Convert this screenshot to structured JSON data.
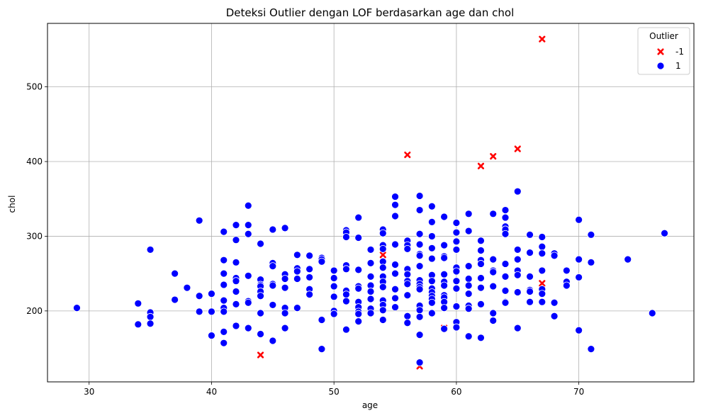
{
  "chart_data": {
    "type": "scatter",
    "title": "Deteksi Outlier dengan LOF berdasarkan age dan chol",
    "xlabel": "age",
    "ylabel": "chol",
    "xlim": [
      26.6,
      79.4
    ],
    "ylim": [
      105,
      585
    ],
    "xticks": [
      30,
      40,
      50,
      60,
      70
    ],
    "yticks": [
      200,
      300,
      400,
      500
    ],
    "grid": true,
    "legend": {
      "title": "Outlier",
      "position": "top-right"
    },
    "series": [
      {
        "name": "-1",
        "color": "#ff0000",
        "marker": "x",
        "points": [
          [
            67,
            564
          ],
          [
            56,
            409
          ],
          [
            65,
            417
          ],
          [
            63,
            407
          ],
          [
            62,
            394
          ],
          [
            44,
            141
          ],
          [
            67,
            237
          ],
          [
            59,
            177
          ],
          [
            57,
            126
          ],
          [
            54,
            275
          ]
        ]
      },
      {
        "name": "1",
        "color": "#0000ff",
        "marker": "circle",
        "points": [
          [
            29,
            204
          ],
          [
            34,
            210
          ],
          [
            34,
            182
          ],
          [
            35,
            282
          ],
          [
            35,
            198
          ],
          [
            35,
            192
          ],
          [
            35,
            183
          ],
          [
            37,
            250
          ],
          [
            37,
            215
          ],
          [
            38,
            231
          ],
          [
            39,
            321
          ],
          [
            39,
            220
          ],
          [
            39,
            199
          ],
          [
            40,
            223
          ],
          [
            40,
            199
          ],
          [
            40,
            167
          ],
          [
            41,
            306
          ],
          [
            41,
            268
          ],
          [
            41,
            250
          ],
          [
            41,
            235
          ],
          [
            41,
            214
          ],
          [
            41,
            204
          ],
          [
            41,
            199
          ],
          [
            41,
            172
          ],
          [
            41,
            157
          ],
          [
            42,
            315
          ],
          [
            42,
            295
          ],
          [
            42,
            265
          ],
          [
            42,
            244
          ],
          [
            42,
            240
          ],
          [
            42,
            226
          ],
          [
            42,
            209
          ],
          [
            42,
            180
          ],
          [
            43,
            341
          ],
          [
            43,
            315
          ],
          [
            43,
            303
          ],
          [
            43,
            247
          ],
          [
            43,
            213
          ],
          [
            43,
            211
          ],
          [
            43,
            177
          ],
          [
            44,
            290
          ],
          [
            44,
            242
          ],
          [
            44,
            235
          ],
          [
            44,
            233
          ],
          [
            44,
            226
          ],
          [
            44,
            220
          ],
          [
            44,
            197
          ],
          [
            44,
            169
          ],
          [
            45,
            309
          ],
          [
            45,
            264
          ],
          [
            45,
            260
          ],
          [
            45,
            236
          ],
          [
            45,
            234
          ],
          [
            45,
            208
          ],
          [
            45,
            160
          ],
          [
            46,
            311
          ],
          [
            46,
            249
          ],
          [
            46,
            243
          ],
          [
            46,
            231
          ],
          [
            46,
            204
          ],
          [
            46,
            197
          ],
          [
            46,
            177
          ],
          [
            47,
            275
          ],
          [
            47,
            257
          ],
          [
            47,
            253
          ],
          [
            47,
            243
          ],
          [
            47,
            204
          ],
          [
            48,
            274
          ],
          [
            48,
            256
          ],
          [
            48,
            245
          ],
          [
            48,
            229
          ],
          [
            48,
            222
          ],
          [
            49,
            271
          ],
          [
            49,
            269
          ],
          [
            49,
            266
          ],
          [
            49,
            188
          ],
          [
            49,
            149
          ],
          [
            50,
            254
          ],
          [
            50,
            244
          ],
          [
            50,
            233
          ],
          [
            50,
            219
          ],
          [
            50,
            200
          ],
          [
            50,
            196
          ],
          [
            51,
            308
          ],
          [
            51,
            305
          ],
          [
            51,
            299
          ],
          [
            51,
            261
          ],
          [
            51,
            256
          ],
          [
            51,
            227
          ],
          [
            51,
            222
          ],
          [
            51,
            213
          ],
          [
            51,
            175
          ],
          [
            52,
            325
          ],
          [
            52,
            298
          ],
          [
            52,
            255
          ],
          [
            52,
            233
          ],
          [
            52,
            230
          ],
          [
            52,
            212
          ],
          [
            52,
            205
          ],
          [
            52,
            199
          ],
          [
            52,
            196
          ],
          [
            52,
            186
          ],
          [
            53,
            282
          ],
          [
            53,
            264
          ],
          [
            53,
            246
          ],
          [
            53,
            234
          ],
          [
            53,
            226
          ],
          [
            53,
            216
          ],
          [
            53,
            203
          ],
          [
            53,
            197
          ],
          [
            54,
            309
          ],
          [
            54,
            304
          ],
          [
            54,
            288
          ],
          [
            54,
            283
          ],
          [
            54,
            266
          ],
          [
            54,
            258
          ],
          [
            54,
            246
          ],
          [
            54,
            239
          ],
          [
            54,
            232
          ],
          [
            54,
            214
          ],
          [
            54,
            208
          ],
          [
            54,
            201
          ],
          [
            54,
            188
          ],
          [
            55,
            353
          ],
          [
            55,
            342
          ],
          [
            55,
            327
          ],
          [
            55,
            289
          ],
          [
            55,
            262
          ],
          [
            55,
            250
          ],
          [
            55,
            229
          ],
          [
            55,
            217
          ],
          [
            55,
            205
          ],
          [
            56,
            294
          ],
          [
            56,
            288
          ],
          [
            56,
            283
          ],
          [
            56,
            256
          ],
          [
            56,
            249
          ],
          [
            56,
            240
          ],
          [
            56,
            236
          ],
          [
            56,
            221
          ],
          [
            56,
            193
          ],
          [
            56,
            184
          ],
          [
            57,
            354
          ],
          [
            57,
            335
          ],
          [
            57,
            303
          ],
          [
            57,
            289
          ],
          [
            57,
            276
          ],
          [
            57,
            274
          ],
          [
            57,
            260
          ],
          [
            57,
            241
          ],
          [
            57,
            236
          ],
          [
            57,
            232
          ],
          [
            57,
            229
          ],
          [
            57,
            207
          ],
          [
            57,
            201
          ],
          [
            57,
            192
          ],
          [
            57,
            168
          ],
          [
            57,
            131
          ],
          [
            58,
            340
          ],
          [
            58,
            319
          ],
          [
            58,
            300
          ],
          [
            58,
            284
          ],
          [
            58,
            270
          ],
          [
            58,
            248
          ],
          [
            58,
            240
          ],
          [
            58,
            230
          ],
          [
            58,
            225
          ],
          [
            58,
            220
          ],
          [
            58,
            216
          ],
          [
            58,
            211
          ],
          [
            58,
            197
          ],
          [
            59,
            326
          ],
          [
            59,
            288
          ],
          [
            59,
            273
          ],
          [
            59,
            271
          ],
          [
            59,
            249
          ],
          [
            59,
            239
          ],
          [
            59,
            234
          ],
          [
            59,
            221
          ],
          [
            59,
            218
          ],
          [
            59,
            212
          ],
          [
            59,
            204
          ],
          [
            59,
            176
          ],
          [
            60,
            318
          ],
          [
            60,
            305
          ],
          [
            60,
            293
          ],
          [
            60,
            282
          ],
          [
            60,
            258
          ],
          [
            60,
            253
          ],
          [
            60,
            240
          ],
          [
            60,
            230
          ],
          [
            60,
            206
          ],
          [
            60,
            185
          ],
          [
            60,
            178
          ],
          [
            61,
            330
          ],
          [
            61,
            307
          ],
          [
            61,
            260
          ],
          [
            61,
            243
          ],
          [
            61,
            234
          ],
          [
            61,
            223
          ],
          [
            61,
            207
          ],
          [
            61,
            203
          ],
          [
            61,
            166
          ],
          [
            62,
            294
          ],
          [
            62,
            281
          ],
          [
            62,
            268
          ],
          [
            62,
            263
          ],
          [
            62,
            244
          ],
          [
            62,
            231
          ],
          [
            62,
            209
          ],
          [
            62,
            164
          ],
          [
            63,
            330
          ],
          [
            63,
            269
          ],
          [
            63,
            254
          ],
          [
            63,
            252
          ],
          [
            63,
            233
          ],
          [
            63,
            197
          ],
          [
            63,
            187
          ],
          [
            64,
            335
          ],
          [
            64,
            325
          ],
          [
            64,
            313
          ],
          [
            64,
            309
          ],
          [
            64,
            303
          ],
          [
            64,
            263
          ],
          [
            64,
            246
          ],
          [
            64,
            227
          ],
          [
            64,
            212
          ],
          [
            64,
            211
          ],
          [
            65,
            360
          ],
          [
            65,
            282
          ],
          [
            65,
            269
          ],
          [
            65,
            254
          ],
          [
            65,
            248
          ],
          [
            65,
            225
          ],
          [
            65,
            177
          ],
          [
            66,
            302
          ],
          [
            66,
            278
          ],
          [
            66,
            246
          ],
          [
            66,
            228
          ],
          [
            66,
            226
          ],
          [
            66,
            212
          ],
          [
            67,
            299
          ],
          [
            67,
            286
          ],
          [
            67,
            277
          ],
          [
            67,
            254
          ],
          [
            67,
            229
          ],
          [
            67,
            223
          ],
          [
            67,
            212
          ],
          [
            68,
            277
          ],
          [
            68,
            274
          ],
          [
            68,
            211
          ],
          [
            68,
            193
          ],
          [
            69,
            254
          ],
          [
            69,
            239
          ],
          [
            69,
            234
          ],
          [
            70,
            322
          ],
          [
            70,
            269
          ],
          [
            70,
            245
          ],
          [
            70,
            174
          ],
          [
            71,
            302
          ],
          [
            71,
            265
          ],
          [
            71,
            149
          ],
          [
            74,
            269
          ],
          [
            76,
            197
          ],
          [
            77,
            304
          ]
        ]
      }
    ]
  }
}
